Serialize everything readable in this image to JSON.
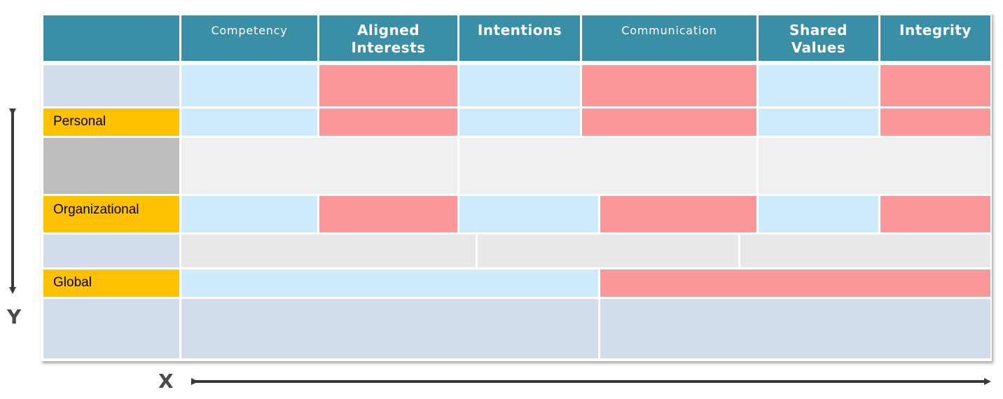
{
  "header": {
    "columns": [
      {
        "label": "Competency"
      },
      {
        "label": "Aligned Interests"
      },
      {
        "label": "Intentions"
      },
      {
        "label": "Communication"
      },
      {
        "label": "Shared Values"
      },
      {
        "label": "Integrity"
      }
    ]
  },
  "rows": {
    "personal": "Personal",
    "organizational": "Organizational",
    "global": "Global"
  },
  "axes": {
    "x": "X",
    "y": "Y"
  },
  "colors": {
    "header": "#3a8fa6",
    "trusting_cell": "#cdebfb",
    "distrust_cell": "#fd989a",
    "row_label": "#ffc000",
    "lavender": "#d3ddec",
    "grey": "#bdbdbd"
  }
}
